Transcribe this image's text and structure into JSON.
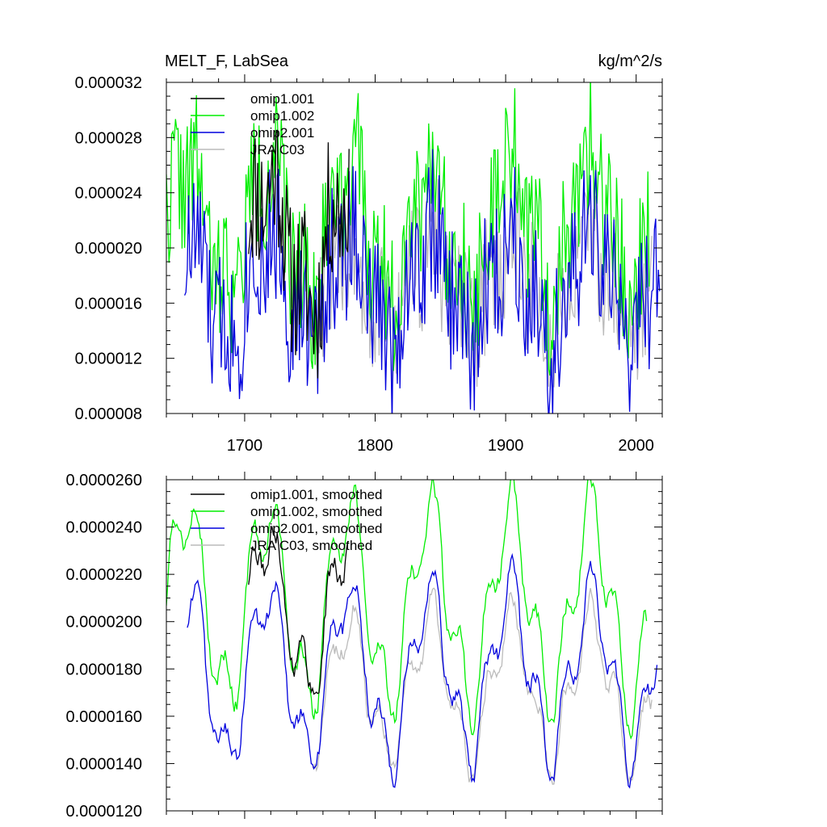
{
  "chart_data": [
    {
      "type": "line",
      "title": "MELT_F, LabSea",
      "units": "kg/m^2/s",
      "xlim": [
        1640,
        2020
      ],
      "ylim": [
        8e-06,
        3.2e-05
      ],
      "x_ticks": [
        1700,
        1800,
        1900,
        2000
      ],
      "x_tick_labels": [
        "1700",
        "1800",
        "1900",
        "2000"
      ],
      "y_ticks": [
        8e-06,
        1.2e-05,
        1.6e-05,
        2e-05,
        2.4e-05,
        2.8e-05,
        3.2e-05
      ],
      "y_tick_labels": [
        "0.000008",
        "0.000012",
        "0.000016",
        "0.000020",
        "0.000024",
        "0.000028",
        "0.000032"
      ],
      "legend": [
        {
          "label": "omip1.001",
          "color": "#000000"
        },
        {
          "label": "omip1.002",
          "color": "#00ee00"
        },
        {
          "label": "omip2.001",
          "color": "#0000dd"
        },
        {
          "label": "JRA C03",
          "color": "#bbbbbb"
        }
      ],
      "series": [
        {
          "name": "omip1.001",
          "color": "#000000",
          "start": 1703,
          "end": 1780,
          "mean": 2.05e-05,
          "amp": 4.5e-06,
          "period": 62,
          "noise": 5.5e-06,
          "seed": 11
        },
        {
          "name": "omip1.002",
          "color": "#00ee00",
          "start": 1638,
          "end": 2010,
          "mean": 2.15e-05,
          "amp": 4.5e-06,
          "period": 62,
          "noise": 5e-06,
          "seed": 22
        },
        {
          "name": "omip2.001",
          "color": "#0000dd",
          "start": 1654,
          "end": 2018,
          "mean": 1.72e-05,
          "amp": 3.5e-06,
          "period": 62,
          "noise": 5.5e-06,
          "seed": 33
        },
        {
          "name": "JRA C03",
          "color": "#bbbbbb",
          "start": 1751,
          "end": 2012,
          "mean": 1.72e-05,
          "amp": 3e-06,
          "period": 62,
          "noise": 5e-06,
          "seed": 44
        }
      ]
    },
    {
      "type": "line",
      "title": "",
      "units": "",
      "xlim": [
        1640,
        2020
      ],
      "ylim": [
        1.2e-05,
        2.6e-05
      ],
      "x_ticks": [
        1700,
        1800,
        1900,
        2000
      ],
      "x_tick_labels": [
        "",
        "",
        "",
        ""
      ],
      "y_ticks": [
        1.2e-05,
        1.4e-05,
        1.6e-05,
        1.8e-05,
        2e-05,
        2.2e-05,
        2.4e-05,
        2.6e-05
      ],
      "y_tick_labels": [
        "0.0000120",
        "0.0000140",
        "0.0000160",
        "0.0000180",
        "0.0000200",
        "0.0000220",
        "0.0000240",
        "0.0000260"
      ],
      "legend": [
        {
          "label": "omip1.001, smoothed",
          "color": "#000000"
        },
        {
          "label": "omip1.002, smoothed",
          "color": "#00ee00"
        },
        {
          "label": "omip2.001, smoothed",
          "color": "#0000dd"
        },
        {
          "label": "JRA C03, smoothed",
          "color": "#bbbbbb"
        }
      ],
      "series": [
        {
          "name": "omip1.001, smoothed",
          "color": "#000000",
          "start": 1703,
          "end": 1780,
          "mean": 2.05e-05,
          "amp": 3e-06,
          "period": 62,
          "noise": 1.2e-06,
          "seed": 111
        },
        {
          "name": "omip1.002, smoothed",
          "color": "#00ee00",
          "start": 1640,
          "end": 2008,
          "mean": 2.08e-05,
          "amp": 3.8e-06,
          "period": 62,
          "noise": 9e-07,
          "seed": 222
        },
        {
          "name": "omip2.001, smoothed",
          "color": "#0000dd",
          "start": 1656,
          "end": 2016,
          "mean": 1.78e-05,
          "amp": 3.3e-06,
          "period": 62,
          "noise": 9e-07,
          "seed": 333
        },
        {
          "name": "JRA C03, smoothed",
          "color": "#bbbbbb",
          "start": 1752,
          "end": 2012,
          "mean": 1.72e-05,
          "amp": 2.8e-06,
          "period": 62,
          "noise": 9e-07,
          "seed": 444
        }
      ]
    }
  ]
}
